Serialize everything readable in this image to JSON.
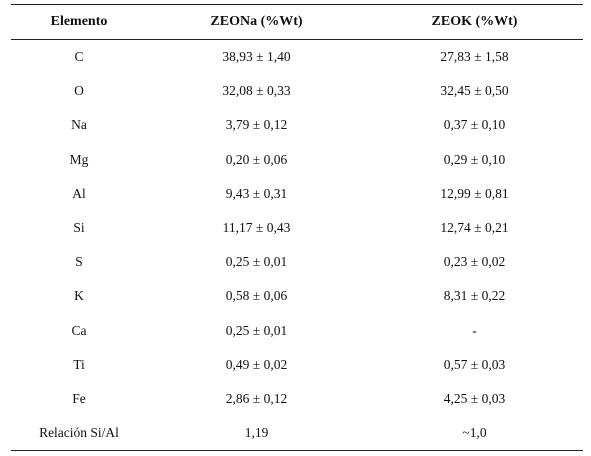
{
  "table": {
    "headers": [
      "Elemento",
      "ZEONa (%Wt)",
      "ZEOK (%Wt)"
    ],
    "rows": [
      [
        "C",
        "38,93 ± 1,40",
        "27,83 ± 1,58"
      ],
      [
        "O",
        "32,08 ± 0,33",
        "32,45 ± 0,50"
      ],
      [
        "Na",
        "3,79 ± 0,12",
        "0,37 ± 0,10"
      ],
      [
        "Mg",
        "0,20 ± 0,06",
        "0,29 ± 0,10"
      ],
      [
        "Al",
        "9,43 ± 0,31",
        "12,99 ± 0,81"
      ],
      [
        "Si",
        "11,17 ± 0,43",
        "12,74 ± 0,21"
      ],
      [
        "S",
        "0,25 ± 0,01",
        "0,23 ± 0,02"
      ],
      [
        "K",
        "0,58 ± 0,06",
        "8,31 ± 0,22"
      ],
      [
        "Ca",
        "0,25 ± 0,01",
        "-"
      ],
      [
        "Ti",
        "0,49 ± 0,02",
        "0,57 ± 0,03"
      ],
      [
        "Fe",
        "2,86 ± 0,12",
        "4,25 ± 0,03"
      ],
      [
        "Relación Si/Al",
        "1,19",
        "~1,0"
      ]
    ]
  }
}
